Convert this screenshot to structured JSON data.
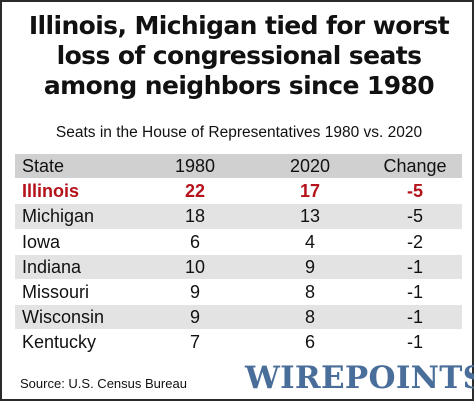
{
  "title_lines": [
    "Illinois, Michigan tied for worst",
    "loss of congressional seats",
    "among neighbors since 1980"
  ],
  "subtitle": "Seats in the House of Representatives 1980 vs. 2020",
  "colors": {
    "highlight": "#b5121b",
    "header_bg": "#d0d0d0",
    "stripe_bg": "#e3e3e3",
    "logo": "#4a6e9a"
  },
  "chart_data": {
    "type": "table",
    "columns": [
      "State",
      "1980",
      "2020",
      "Change"
    ],
    "rows": [
      {
        "state": "Illinois",
        "y1980": "22",
        "y2020": "17",
        "change": "-5",
        "highlight": true
      },
      {
        "state": "Michigan",
        "y1980": "18",
        "y2020": "13",
        "change": "-5",
        "highlight": false
      },
      {
        "state": "Iowa",
        "y1980": "6",
        "y2020": "4",
        "change": "-2",
        "highlight": false
      },
      {
        "state": "Indiana",
        "y1980": "10",
        "y2020": "9",
        "change": "-1",
        "highlight": false
      },
      {
        "state": "Missouri",
        "y1980": "9",
        "y2020": "8",
        "change": "-1",
        "highlight": false
      },
      {
        "state": "Wisconsin",
        "y1980": "9",
        "y2020": "8",
        "change": "-1",
        "highlight": false
      },
      {
        "state": "Kentucky",
        "y1980": "7",
        "y2020": "6",
        "change": "-1",
        "highlight": false
      }
    ]
  },
  "source": "Source: U.S. Census Bureau",
  "logo": "WIREPOINTS"
}
